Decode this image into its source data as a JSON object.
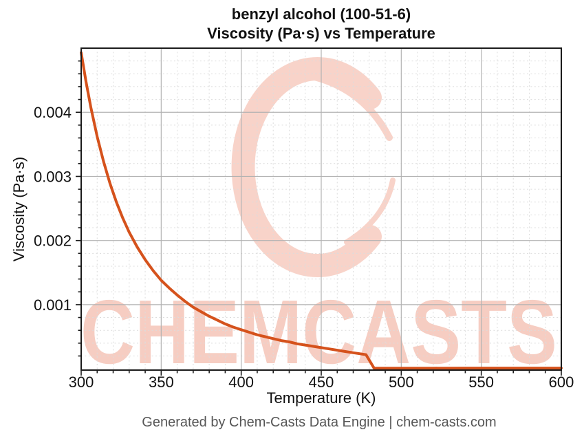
{
  "watermark": {
    "text": "CHEMCASTS",
    "logo_icon": "chemcasts-c-logo",
    "logo_color": "#f8d3c9",
    "text_color": "#f6cdc2"
  },
  "footer": {
    "text": "Generated by Chem-Casts Data Engine | chem-casts.com"
  },
  "chart_data": {
    "type": "line",
    "title": "benzyl alcohol (100-51-6)\nViscosity (Pa·s) vs Temperature",
    "title_lines": [
      "benzyl alcohol (100-51-6)",
      "Viscosity (Pa·s) vs Temperature"
    ],
    "xlabel": "Temperature (K)",
    "ylabel": "Viscosity (Pa·s)",
    "xlim": [
      300,
      600
    ],
    "ylim": [
      -2e-05,
      0.005
    ],
    "xticks": [
      {
        "v": 300,
        "label": "300"
      },
      {
        "v": 350,
        "label": "350"
      },
      {
        "v": 400,
        "label": "400"
      },
      {
        "v": 450,
        "label": "450"
      },
      {
        "v": 500,
        "label": "500"
      },
      {
        "v": 550,
        "label": "550"
      },
      {
        "v": 600,
        "label": "600"
      }
    ],
    "yticks": [
      {
        "v": 0.001,
        "label": "0.001"
      },
      {
        "v": 0.002,
        "label": "0.002"
      },
      {
        "v": 0.003,
        "label": "0.003"
      },
      {
        "v": 0.004,
        "label": "0.004"
      }
    ],
    "minor_x_step": 10,
    "minor_y_step": 0.0002,
    "grid": {
      "major": true,
      "minor": true
    },
    "legend_position": "none",
    "series": [
      {
        "name": "Viscosity (Pa·s)",
        "color": "#d5521c",
        "line_width": 4,
        "points": [
          [
            300,
            0.00493
          ],
          [
            303,
            0.00448
          ],
          [
            306,
            0.00408
          ],
          [
            310,
            0.00362
          ],
          [
            314,
            0.00323
          ],
          [
            318,
            0.00289
          ],
          [
            322,
            0.0026
          ],
          [
            326,
            0.00235
          ],
          [
            330,
            0.00213
          ],
          [
            335,
            0.0019
          ],
          [
            340,
            0.0017
          ],
          [
            345,
            0.00153
          ],
          [
            350,
            0.00138
          ],
          [
            355,
            0.00126
          ],
          [
            360,
            0.00115
          ],
          [
            365,
            0.00105
          ],
          [
            370,
            0.00096
          ],
          [
            375,
            0.00089
          ],
          [
            380,
            0.00082
          ],
          [
            385,
            0.00076
          ],
          [
            390,
            0.0007
          ],
          [
            395,
            0.00065
          ],
          [
            400,
            0.00061
          ],
          [
            405,
            0.00057
          ],
          [
            410,
            0.00053
          ],
          [
            415,
            0.0005
          ],
          [
            420,
            0.00047
          ],
          [
            425,
            0.00044
          ],
          [
            430,
            0.00042
          ],
          [
            435,
            0.00039
          ],
          [
            440,
            0.00037
          ],
          [
            445,
            0.00035
          ],
          [
            450,
            0.00033
          ],
          [
            455,
            0.00031
          ],
          [
            460,
            0.00029
          ],
          [
            465,
            0.00027
          ],
          [
            470,
            0.00025
          ],
          [
            474,
            0.000235
          ],
          [
            478,
            0.00022
          ],
          [
            483,
            1e-05
          ],
          [
            490,
            1e-05
          ],
          [
            500,
            1.02e-05
          ],
          [
            520,
            1.05e-05
          ],
          [
            540,
            1.07e-05
          ],
          [
            560,
            1.1e-05
          ],
          [
            580,
            1.12e-05
          ],
          [
            600,
            1.15e-05
          ]
        ]
      }
    ]
  }
}
